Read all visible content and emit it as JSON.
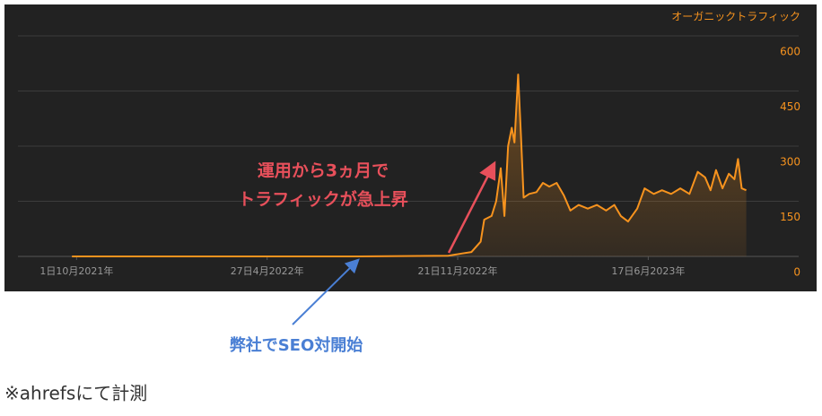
{
  "chart_data": {
    "type": "line",
    "grid": true,
    "legend": "top-right",
    "series": [
      {
        "name": "オーガニックトラフィック",
        "color": "#f7931e",
        "x": [
          "2021-09-26",
          "2022-01-22",
          "2022-04-29",
          "2022-08-05",
          "2022-11-11",
          "2022-11-26",
          "2022-12-06",
          "2022-12-16",
          "2022-12-20",
          "2022-12-28",
          "2023-01-02",
          "2023-01-07",
          "2023-01-11",
          "2023-01-15",
          "2023-01-19",
          "2023-01-22",
          "2023-01-26",
          "2023-01-29",
          "2023-02-01",
          "2023-02-07",
          "2023-02-15",
          "2023-02-22",
          "2023-03-01",
          "2023-03-09",
          "2023-03-17",
          "2023-03-24",
          "2023-04-02",
          "2023-04-12",
          "2023-04-22",
          "2023-05-02",
          "2023-05-11",
          "2023-05-18",
          "2023-05-26",
          "2023-06-05",
          "2023-06-13",
          "2023-06-23",
          "2023-07-02",
          "2023-07-12",
          "2023-07-22",
          "2023-08-01",
          "2023-08-10",
          "2023-08-18",
          "2023-08-24",
          "2023-08-30",
          "2023-09-06",
          "2023-09-13",
          "2023-09-19",
          "2023-09-23",
          "2023-09-27",
          "2023-10-02"
        ],
        "values": [
          0,
          0,
          0,
          0,
          2,
          8,
          12,
          40,
          100,
          110,
          150,
          240,
          110,
          300,
          350,
          310,
          495,
          330,
          160,
          170,
          175,
          200,
          190,
          200,
          165,
          125,
          140,
          130,
          140,
          125,
          140,
          110,
          95,
          130,
          185,
          170,
          180,
          170,
          185,
          170,
          230,
          215,
          180,
          235,
          185,
          225,
          210,
          265,
          185,
          180
        ]
      }
    ],
    "xlim": [
      "2021-07-29",
      "2023-10-20"
    ],
    "xticks": [
      {
        "value": "2021-10-01",
        "label": "1日10月2021年"
      },
      {
        "value": "2022-04-27",
        "label": "27日4月2022年"
      },
      {
        "value": "2022-11-21",
        "label": "21日11月2022年"
      },
      {
        "value": "2023-06-17",
        "label": "17日6月2023年"
      }
    ],
    "ylim": [
      0,
      600
    ],
    "yticks": [
      0,
      150,
      300,
      450,
      600
    ],
    "annotations": [
      {
        "lines": [
          "運用から3ヵ月で",
          "トラフィックが急上昇"
        ],
        "color": "#e8505b"
      },
      {
        "lines": [
          "弊社でSEO対開始"
        ],
        "color": "#4a7fd4"
      }
    ]
  },
  "footnote": "※ahrefsにて計測"
}
